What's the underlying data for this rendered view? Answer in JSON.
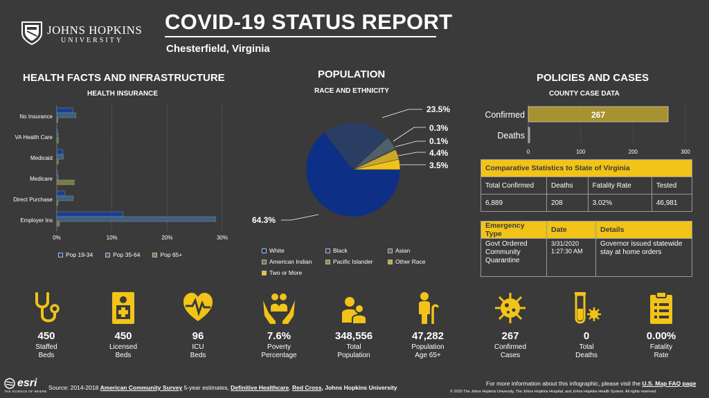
{
  "header": {
    "logo_name": "JOHNS HOPKINS",
    "logo_sub": "UNIVERSITY",
    "title": "COVID-19 STATUS REPORT",
    "location": "Chesterfield,  Virginia"
  },
  "health": {
    "section_title": "HEALTH FACTS AND INFRASTRUCTURE",
    "chart_title": "HEALTH INSURANCE",
    "legend": [
      "Pop 19-34",
      "Pop 35-64",
      "Pop 65+"
    ]
  },
  "population": {
    "section_title": "POPULATION",
    "chart_title": "RACE AND ETHNICITY",
    "pie_labels": [
      "23.5%",
      "0.3%",
      "0.1%",
      "4.4%",
      "3.5%",
      "64.3%"
    ],
    "legend": [
      "White",
      "Black",
      "Asian",
      "American Indian",
      "Pacific Islander",
      "Other Race",
      "Two or More"
    ]
  },
  "policies": {
    "section_title": "POLICIES AND CASES",
    "chart_title": "COUNTY CASE DATA",
    "confirmed_label": "Confirmed",
    "deaths_label": "Deaths",
    "confirmed_value": "267",
    "axis_ticks": [
      "0",
      "100",
      "200",
      "300"
    ],
    "comparative": {
      "header": "Comparative Statistics to State of Virginia",
      "cols": [
        "Total Confirmed",
        "Deaths",
        "Fatality Rate",
        "Tested"
      ],
      "vals": [
        "6,889",
        "208",
        "3.02%",
        "46,981"
      ]
    },
    "emergency": {
      "cols": [
        "Emergency Type",
        "Date",
        "Details"
      ],
      "type": "Govt Ordered Community Quarantine",
      "date": "3/31/2020 1:27:30 AM",
      "details": "Governor issued statewide stay at home orders"
    }
  },
  "stats": [
    {
      "icon": "stethoscope-icon",
      "value": "450",
      "label": "Staffed Beds"
    },
    {
      "icon": "licensed-bed-icon",
      "value": "450",
      "label": "Licensed Beds"
    },
    {
      "icon": "heart-monitor-icon",
      "value": "96",
      "label": "ICU Beds"
    },
    {
      "icon": "hands-people-icon",
      "value": "7.6%",
      "label": "Poverty Percentage"
    },
    {
      "icon": "population-icon",
      "value": "348,556",
      "label": "Total Population"
    },
    {
      "icon": "elderly-person-icon",
      "value": "47,282",
      "label": "Population Age 65+"
    },
    {
      "icon": "virus-icon",
      "value": "267",
      "label": "Confirmed Cases"
    },
    {
      "icon": "test-tube-icon",
      "value": "0",
      "label": "Total Deaths"
    },
    {
      "icon": "clipboard-icon",
      "value": "0.00%",
      "label": "Fatality Rate"
    }
  ],
  "footer": {
    "esri": "esri",
    "esri_tag": "THE SCIENCE OF WHERE",
    "source_prefix": "Source: 2014-2018 ",
    "source_link1": "American Community Survey",
    "source_mid1": " 5-year estimates, ",
    "source_link2": "Definitive Healthcare",
    "source_mid2": ", ",
    "source_link3": "Red Cross",
    "source_mid3": ", Johns Hopkins University",
    "info_prefix": "For more information about this infographic, please visit the ",
    "info_link": "U.S. Map FAQ page",
    "copyright": "© 2020 The Johns Hopkins University, The Johns Hopkins Hospital, and Johns Hopkins Health System. All rights reserved."
  },
  "colors": {
    "background": "#3a3a3a",
    "pop_19_34": "#1d3e8f",
    "pop_35_64": "#3f5f7f",
    "pop_65_plus": "#7e7a45",
    "accent": "#f2c318",
    "bar_gold": "#a8922f"
  },
  "chart_data": [
    {
      "type": "bar",
      "title": "HEALTH INSURANCE",
      "orientation": "horizontal",
      "categories": [
        "No Insurance",
        "VA Health Care",
        "Medicaid",
        "Medicare",
        "Direct Purchase",
        "Employer Ins"
      ],
      "xlim": [
        0,
        30
      ],
      "x_ticks": [
        "0%",
        "10%",
        "20%",
        "30%"
      ],
      "series": [
        {
          "name": "Pop 19-34",
          "values": [
            2.9,
            0.1,
            1.1,
            0.1,
            1.4,
            12.0
          ]
        },
        {
          "name": "Pop 35-64",
          "values": [
            3.5,
            0.3,
            1.2,
            0.3,
            3.0,
            28.8
          ]
        },
        {
          "name": "Pop 65+",
          "values": [
            0.2,
            0.3,
            0.3,
            3.2,
            0.2,
            0.5
          ]
        }
      ]
    },
    {
      "type": "pie",
      "title": "RACE AND ETHNICITY",
      "categories": [
        "White",
        "Black",
        "Asian",
        "American Indian",
        "Pacific Islander",
        "Other Race",
        "Two or More"
      ],
      "values": [
        64.3,
        23.5,
        4.4,
        0.3,
        0.1,
        3.5,
        3.5
      ]
    },
    {
      "type": "bar",
      "title": "COUNTY CASE DATA",
      "orientation": "horizontal",
      "categories": [
        "Confirmed",
        "Deaths"
      ],
      "values": [
        267,
        0
      ],
      "xlim": [
        0,
        300
      ]
    }
  ]
}
